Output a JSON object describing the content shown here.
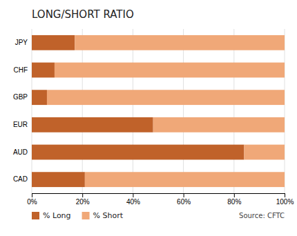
{
  "chart_data": {
    "type": "bar",
    "title": "LONG/SHORT RATIO",
    "orientation": "horizontal",
    "stacked": true,
    "categories": [
      "CAD",
      "AUD",
      "EUR",
      "GBP",
      "CHF",
      "JPY"
    ],
    "series": [
      {
        "name": "% Long",
        "color": "#C0622A",
        "values": [
          21,
          84,
          48,
          6,
          9,
          17
        ]
      },
      {
        "name": "% Short",
        "color": "#F0A878",
        "values": [
          79,
          16,
          52,
          94,
          91,
          83
        ]
      }
    ],
    "xlim": [
      0,
      100
    ],
    "xticks": [
      {
        "value": 0,
        "label": "0%"
      },
      {
        "value": 20,
        "label": "20%"
      },
      {
        "value": 40,
        "label": "40%"
      },
      {
        "value": 60,
        "label": "60%"
      },
      {
        "value": 80,
        "label": "80%"
      },
      {
        "value": 100,
        "label": "100%"
      }
    ],
    "grid": true,
    "legend": "bottom",
    "annotations": [
      "Source: CFTC"
    ]
  }
}
